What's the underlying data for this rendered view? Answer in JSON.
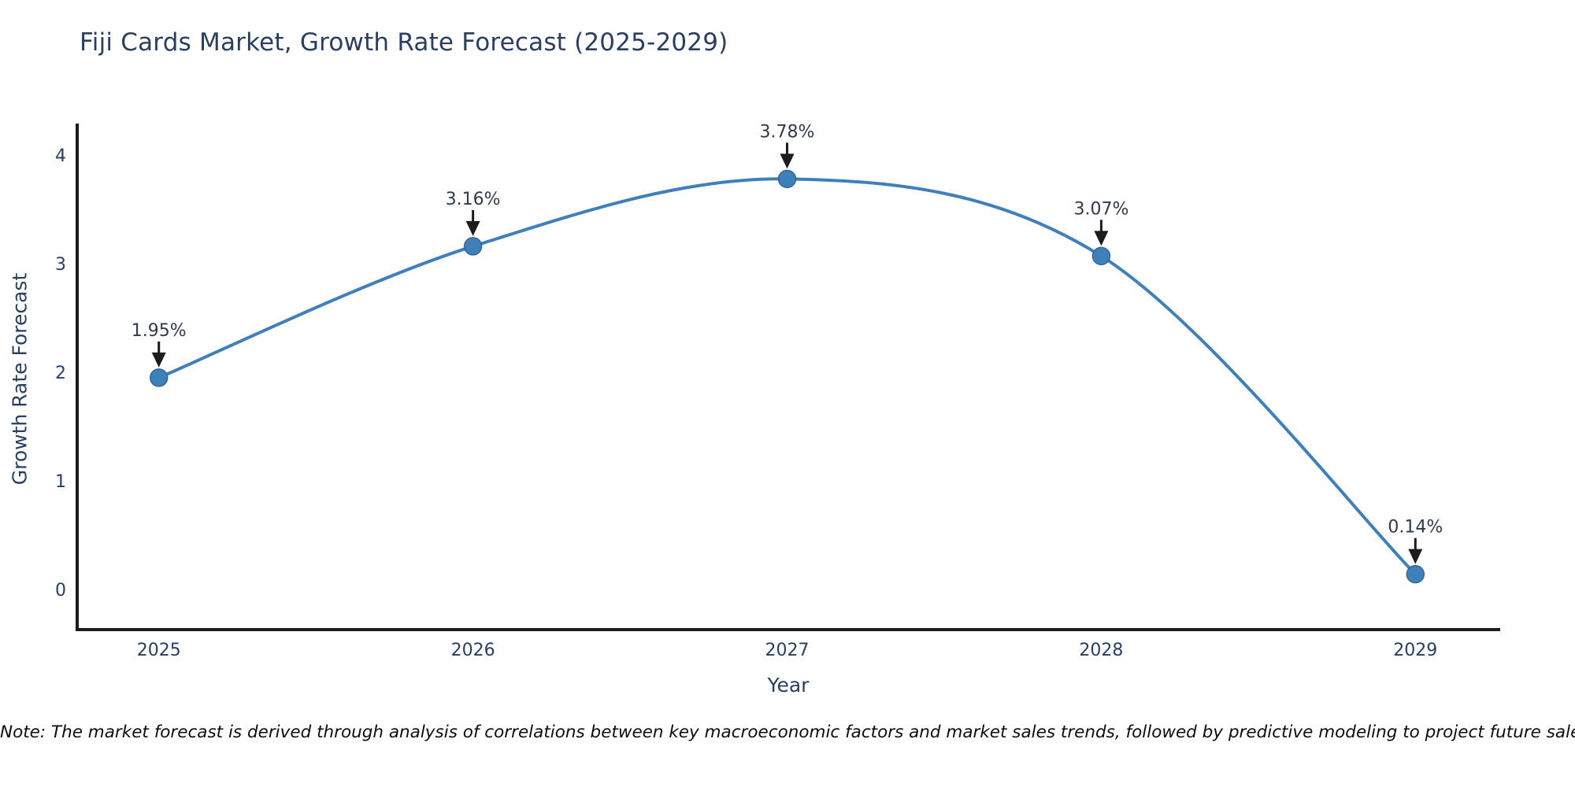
{
  "page": {
    "background": "#ffffff"
  },
  "chart_data": {
    "type": "line",
    "title": "Fiji Cards Market, Growth Rate Forecast (2025-2029)",
    "xlabel": "Year",
    "ylabel": "Growth Rate Forecast",
    "x": [
      2025,
      2026,
      2027,
      2028,
      2029
    ],
    "series": [
      {
        "name": "Growth Rate Forecast",
        "values": [
          1.95,
          3.16,
          3.78,
          3.07,
          0.14
        ]
      }
    ],
    "point_labels": [
      "1.95%",
      "3.16%",
      "3.78%",
      "3.07%",
      "0.14%"
    ],
    "x_tick_labels": [
      "2025",
      "2026",
      "2027",
      "2028",
      "2029"
    ],
    "y_ticks": [
      0,
      1,
      2,
      3,
      4
    ],
    "y_tick_labels": [
      "0",
      "1",
      "2",
      "3",
      "4"
    ],
    "xlim": [
      2024.74,
      2029.27
    ],
    "ylim": [
      -0.37,
      4.29
    ],
    "grid": false,
    "legend": "none",
    "line_shape": "spline",
    "marker": "circle",
    "annotations": "value labels with downward arrows above each point",
    "colors": {
      "line": "#3f7fba",
      "marker_fill": "#3f7fba",
      "marker_edge": "#33679b",
      "axis_line": "#1c1c1c",
      "tick_text": "#2a3f5f",
      "annotation_text": "#2f3b4c",
      "arrow": "#1c1c1c",
      "background": "#ffffff"
    }
  },
  "note": "Note: The market forecast is derived through analysis of correlations between key macroeconomic factors and market sales trends, followed by predictive modeling to project future sales."
}
